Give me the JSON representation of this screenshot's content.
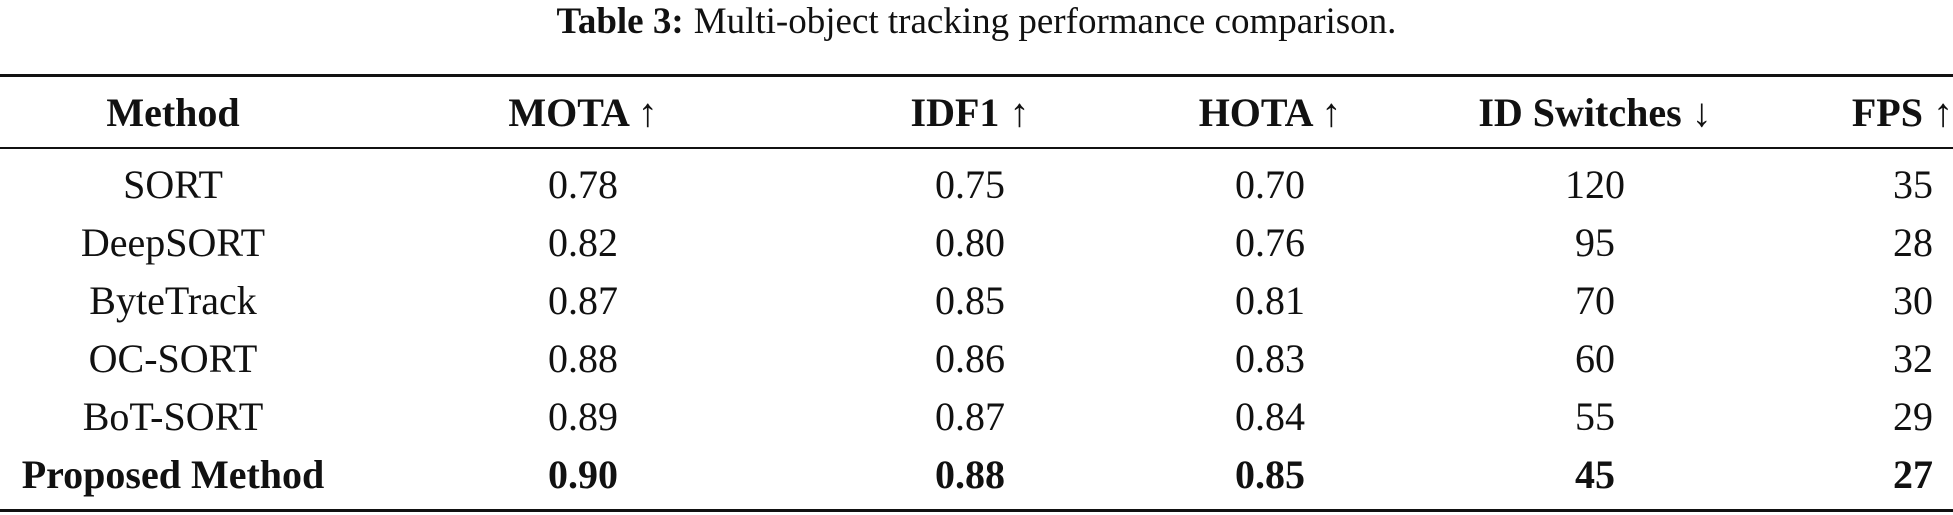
{
  "caption": {
    "label": "Table 3:",
    "text": "Multi-object tracking performance comparison."
  },
  "table": {
    "headers": [
      "Method",
      "MOTA ↑",
      "IDF1 ↑",
      "HOTA ↑",
      "ID Switches ↓",
      "FPS ↑"
    ],
    "rows": [
      [
        "SORT",
        "0.78",
        "0.75",
        "0.70",
        "120",
        "35"
      ],
      [
        "DeepSORT",
        "0.82",
        "0.80",
        "0.76",
        "95",
        "28"
      ],
      [
        "ByteTrack",
        "0.87",
        "0.85",
        "0.81",
        "70",
        "30"
      ],
      [
        "OC-SORT",
        "0.88",
        "0.86",
        "0.83",
        "60",
        "32"
      ],
      [
        "BoT-SORT",
        "0.89",
        "0.87",
        "0.84",
        "55",
        "29"
      ],
      [
        "Proposed Method",
        "0.90",
        "0.88",
        "0.85",
        "45",
        "27"
      ]
    ],
    "bold_row_index": 5
  }
}
